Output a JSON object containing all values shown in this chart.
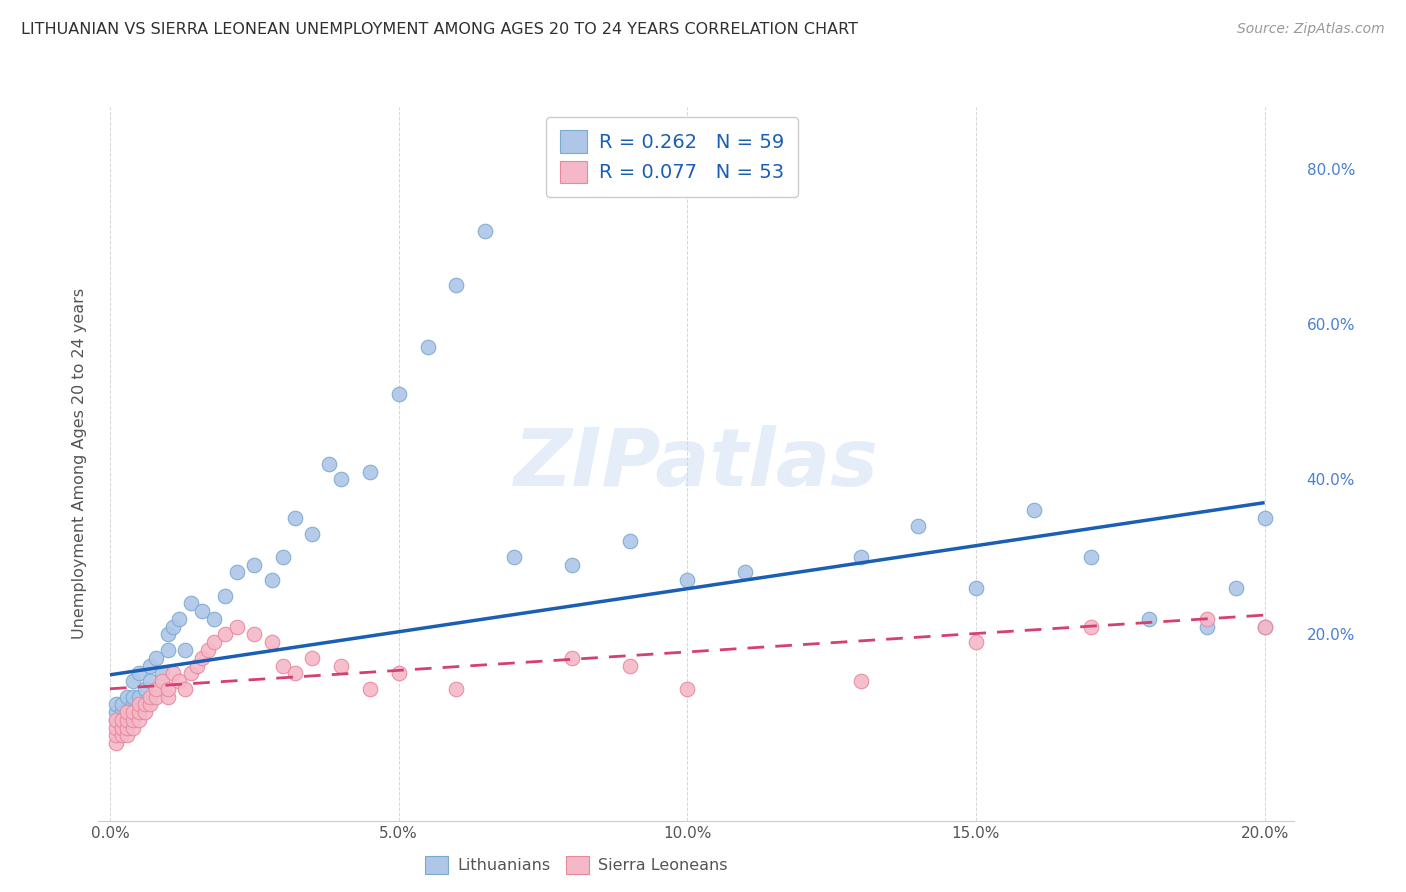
{
  "title": "LITHUANIAN VS SIERRA LEONEAN UNEMPLOYMENT AMONG AGES 20 TO 24 YEARS CORRELATION CHART",
  "source": "Source: ZipAtlas.com",
  "ylabel": "Unemployment Among Ages 20 to 24 years",
  "xlabel_ticks": [
    "0.0%",
    "",
    "",
    "",
    "",
    "5.0%",
    "",
    "",
    "",
    "",
    "10.0%",
    "",
    "",
    "",
    "",
    "15.0%",
    "",
    "",
    "",
    "",
    "20.0%"
  ],
  "xlabel_vals": [
    0.0,
    0.01,
    0.02,
    0.03,
    0.04,
    0.05,
    0.06,
    0.07,
    0.08,
    0.09,
    0.1,
    0.11,
    0.12,
    0.13,
    0.14,
    0.15,
    0.16,
    0.17,
    0.18,
    0.19,
    0.2
  ],
  "ylabel_ticks": [
    "20.0%",
    "40.0%",
    "60.0%",
    "80.0%"
  ],
  "ylabel_vals": [
    0.2,
    0.4,
    0.6,
    0.8
  ],
  "xlim": [
    -0.002,
    0.205
  ],
  "ylim": [
    -0.04,
    0.88
  ],
  "R_lith": 0.262,
  "N_lith": 59,
  "R_sierra": 0.077,
  "N_sierra": 53,
  "lith_color": "#aec6e8",
  "sierra_color": "#f5b8c8",
  "lith_edge_color": "#7aaad0",
  "sierra_edge_color": "#e8899a",
  "lith_line_color": "#1a5fb4",
  "sierra_line_color": "#d44070",
  "background_color": "#ffffff",
  "grid_color": "#cccccc",
  "title_color": "#303030",
  "watermark": "ZIPatlas",
  "lith_x": [
    0.001,
    0.001,
    0.001,
    0.002,
    0.002,
    0.002,
    0.003,
    0.003,
    0.003,
    0.004,
    0.004,
    0.004,
    0.004,
    0.005,
    0.005,
    0.005,
    0.006,
    0.006,
    0.007,
    0.007,
    0.008,
    0.009,
    0.01,
    0.01,
    0.011,
    0.012,
    0.013,
    0.014,
    0.016,
    0.018,
    0.02,
    0.022,
    0.025,
    0.028,
    0.03,
    0.032,
    0.035,
    0.038,
    0.04,
    0.045,
    0.05,
    0.055,
    0.06,
    0.065,
    0.07,
    0.08,
    0.09,
    0.1,
    0.11,
    0.13,
    0.14,
    0.15,
    0.16,
    0.17,
    0.18,
    0.19,
    0.195,
    0.2,
    0.2
  ],
  "lith_y": [
    0.09,
    0.1,
    0.11,
    0.08,
    0.1,
    0.11,
    0.09,
    0.1,
    0.12,
    0.1,
    0.11,
    0.12,
    0.14,
    0.1,
    0.12,
    0.15,
    0.11,
    0.13,
    0.14,
    0.16,
    0.17,
    0.15,
    0.18,
    0.2,
    0.21,
    0.22,
    0.18,
    0.24,
    0.23,
    0.22,
    0.25,
    0.28,
    0.29,
    0.27,
    0.3,
    0.35,
    0.33,
    0.42,
    0.4,
    0.41,
    0.51,
    0.57,
    0.65,
    0.72,
    0.3,
    0.29,
    0.32,
    0.27,
    0.28,
    0.3,
    0.34,
    0.26,
    0.36,
    0.3,
    0.22,
    0.21,
    0.26,
    0.35,
    0.21
  ],
  "sierra_x": [
    0.001,
    0.001,
    0.001,
    0.001,
    0.002,
    0.002,
    0.002,
    0.003,
    0.003,
    0.003,
    0.003,
    0.004,
    0.004,
    0.004,
    0.005,
    0.005,
    0.005,
    0.006,
    0.006,
    0.007,
    0.007,
    0.008,
    0.008,
    0.009,
    0.01,
    0.01,
    0.011,
    0.012,
    0.013,
    0.014,
    0.015,
    0.016,
    0.017,
    0.018,
    0.02,
    0.022,
    0.025,
    0.028,
    0.03,
    0.032,
    0.035,
    0.04,
    0.045,
    0.05,
    0.06,
    0.08,
    0.09,
    0.1,
    0.13,
    0.15,
    0.17,
    0.19,
    0.2
  ],
  "sierra_y": [
    0.06,
    0.07,
    0.08,
    0.09,
    0.07,
    0.08,
    0.09,
    0.07,
    0.08,
    0.09,
    0.1,
    0.08,
    0.09,
    0.1,
    0.09,
    0.1,
    0.11,
    0.1,
    0.11,
    0.11,
    0.12,
    0.12,
    0.13,
    0.14,
    0.12,
    0.13,
    0.15,
    0.14,
    0.13,
    0.15,
    0.16,
    0.17,
    0.18,
    0.19,
    0.2,
    0.21,
    0.2,
    0.19,
    0.16,
    0.15,
    0.17,
    0.16,
    0.13,
    0.15,
    0.13,
    0.17,
    0.16,
    0.13,
    0.14,
    0.19,
    0.21,
    0.22,
    0.21
  ],
  "lith_trend": [
    0.148,
    0.37
  ],
  "sierra_trend": [
    0.13,
    0.225
  ]
}
